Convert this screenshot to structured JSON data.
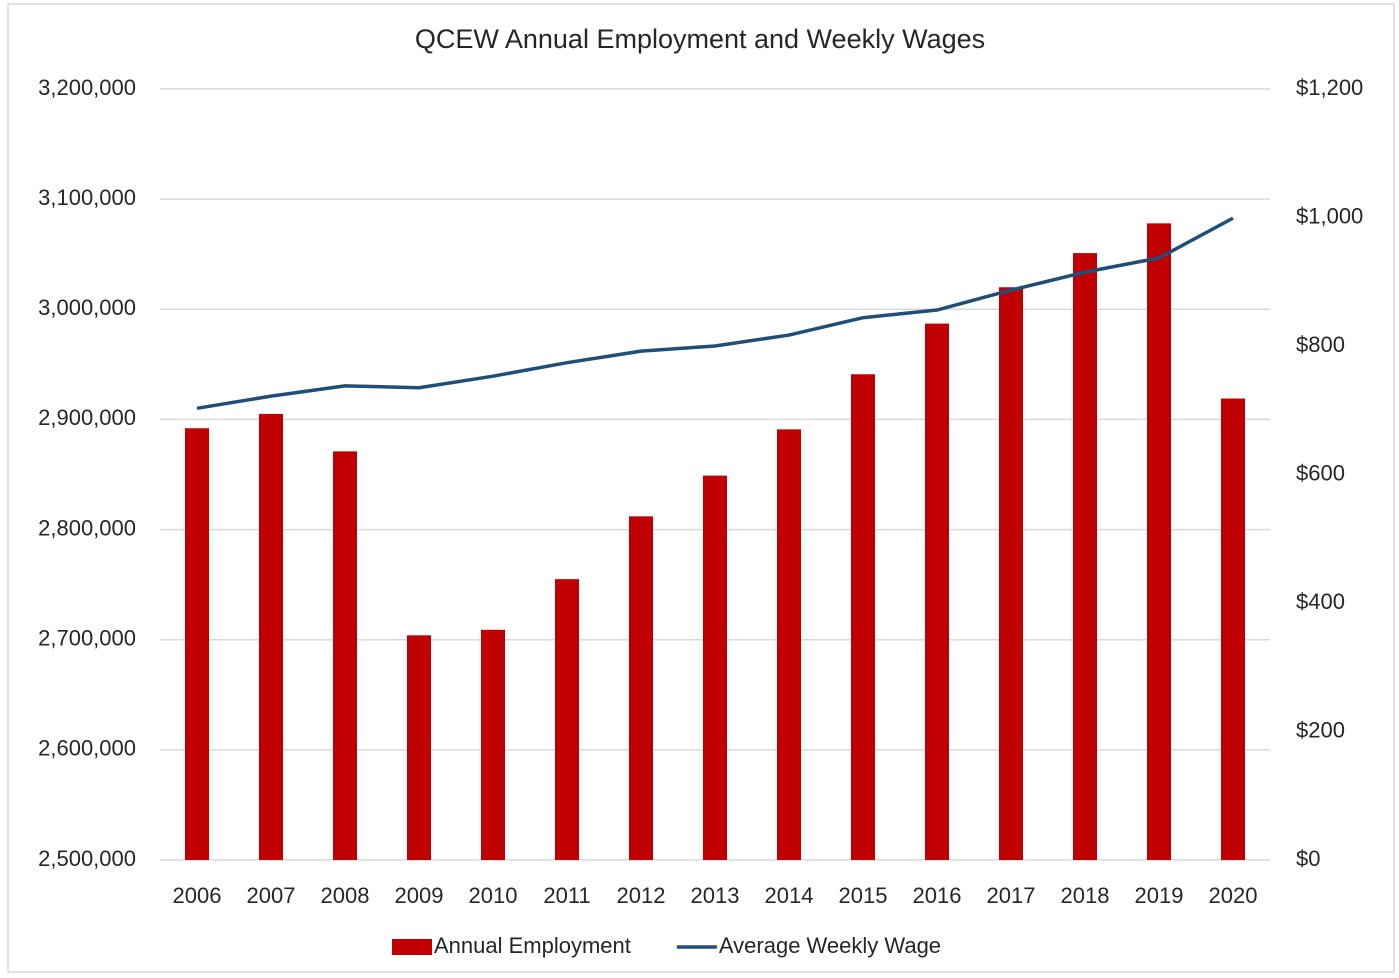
{
  "chart_data": {
    "type": "bar",
    "title": "QCEW Annual Employment and Weekly Wages",
    "categories": [
      "2006",
      "2007",
      "2008",
      "2009",
      "2010",
      "2011",
      "2012",
      "2013",
      "2014",
      "2015",
      "2016",
      "2017",
      "2018",
      "2019",
      "2020"
    ],
    "series": [
      {
        "name": "Annual Employment",
        "type": "bar",
        "color": "#c00000",
        "values": [
          2892000,
          2905000,
          2871000,
          2704000,
          2709000,
          2755000,
          2812000,
          2849000,
          2891000,
          2941000,
          2987000,
          3020000,
          3051000,
          3078000,
          2919000
        ]
      },
      {
        "name": "Average Weekly Wage",
        "type": "line",
        "axis": "y2",
        "color": "#1f4e79",
        "values": [
          703,
          722,
          738,
          735,
          753,
          774,
          792,
          800,
          817,
          844,
          856,
          887,
          915,
          937,
          999
        ]
      }
    ],
    "ylim": [
      2500000,
      3200000
    ],
    "yticks": [
      {
        "value": 2500000,
        "label": "2,500,000"
      },
      {
        "value": 2600000,
        "label": "2,600,000"
      },
      {
        "value": 2700000,
        "label": "2,700,000"
      },
      {
        "value": 2800000,
        "label": "2,800,000"
      },
      {
        "value": 2900000,
        "label": "2,900,000"
      },
      {
        "value": 3000000,
        "label": "3,000,000"
      },
      {
        "value": 3100000,
        "label": "3,100,000"
      },
      {
        "value": 3200000,
        "label": "3,200,000"
      }
    ],
    "y2lim": [
      0,
      1200
    ],
    "y2ticks": [
      {
        "value": 0,
        "label": "$0"
      },
      {
        "value": 200,
        "label": "$200"
      },
      {
        "value": 400,
        "label": "$400"
      },
      {
        "value": 600,
        "label": "$600"
      },
      {
        "value": 800,
        "label": "$800"
      },
      {
        "value": 1000,
        "label": "$1,000"
      },
      {
        "value": 1200,
        "label": "$1,200"
      }
    ],
    "grid": true,
    "legend": "bottom"
  }
}
